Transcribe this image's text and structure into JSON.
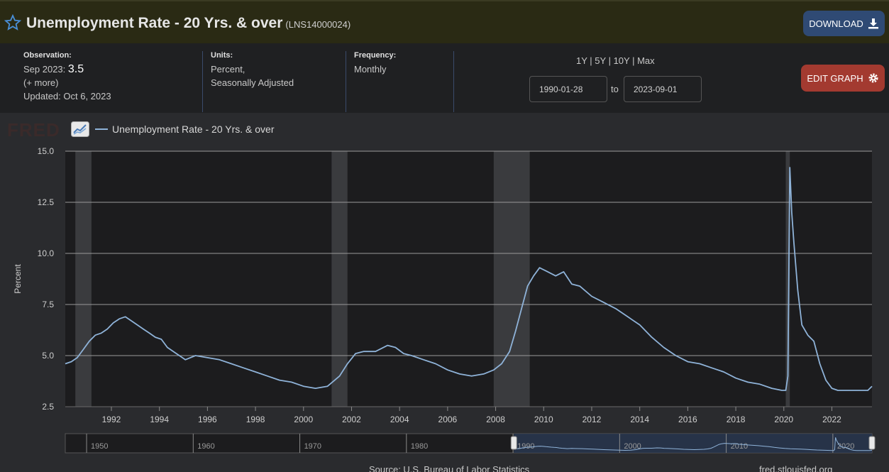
{
  "header": {
    "title": "Unemployment Rate - 20 Yrs. & over",
    "series_id": "(LNS14000024)",
    "download_label": "DOWNLOAD"
  },
  "meta": {
    "observation_label": "Observation:",
    "observation_date": "Sep 2023:",
    "observation_value": "3.5",
    "more_label": "(+ more)",
    "updated": "Updated: Oct 6, 2023",
    "units_label": "Units:",
    "units_line1": "Percent,",
    "units_line2": "Seasonally Adjusted",
    "frequency_label": "Frequency:",
    "frequency_value": "Monthly"
  },
  "controls": {
    "range_links": [
      "1Y",
      "5Y",
      "10Y",
      "Max"
    ],
    "start_date": "1990-01-28",
    "to_label": "to",
    "end_date": "2023-09-01",
    "edit_label": "EDIT GRAPH"
  },
  "footer": {
    "source": "Source: U.S. Bureau of Labor Statistics",
    "site": "fred.stlouisfed.org"
  },
  "colors": {
    "series": "#8fb3d9",
    "recession": "#3a3b3e",
    "plot_bg": "#1c1c1e"
  },
  "chart_data": {
    "type": "line",
    "ylabel": "Percent",
    "xlabel": "",
    "ylim": [
      2.5,
      15.0
    ],
    "xlim": [
      1990.08,
      2023.67
    ],
    "yticks": [
      2.5,
      5.0,
      7.5,
      10.0,
      12.5,
      15.0
    ],
    "xticks": [
      1992,
      1994,
      1996,
      1998,
      2000,
      2002,
      2004,
      2006,
      2008,
      2010,
      2012,
      2014,
      2016,
      2018,
      2020,
      2022
    ],
    "grid": true,
    "legend": "top-left",
    "recessions": [
      [
        1990.5,
        1991.17
      ],
      [
        2001.17,
        2001.83
      ],
      [
        2007.92,
        2009.42
      ],
      [
        2020.08,
        2020.25
      ]
    ],
    "series": [
      {
        "name": "Unemployment Rate - 20 Yrs. & over",
        "x": [
          1990.08,
          1990.33,
          1990.58,
          1990.83,
          1991.08,
          1991.33,
          1991.58,
          1991.83,
          1992.08,
          1992.33,
          1992.58,
          1992.83,
          1993.08,
          1993.33,
          1993.58,
          1993.83,
          1994.08,
          1994.33,
          1994.58,
          1994.83,
          1995.08,
          1995.5,
          1996.0,
          1996.5,
          1997.0,
          1997.5,
          1998.0,
          1998.5,
          1999.0,
          1999.5,
          2000.0,
          2000.5,
          2001.0,
          2001.5,
          2001.83,
          2002.17,
          2002.5,
          2003.0,
          2003.5,
          2003.83,
          2004.17,
          2004.5,
          2005.0,
          2005.5,
          2006.0,
          2006.5,
          2007.0,
          2007.5,
          2007.92,
          2008.25,
          2008.58,
          2008.83,
          2009.08,
          2009.33,
          2009.58,
          2009.83,
          2010.17,
          2010.5,
          2010.83,
          2011.17,
          2011.5,
          2012.0,
          2012.5,
          2013.0,
          2013.5,
          2014.0,
          2014.5,
          2015.0,
          2015.5,
          2016.0,
          2016.5,
          2017.0,
          2017.5,
          2018.0,
          2018.5,
          2019.0,
          2019.5,
          2019.92,
          2020.08,
          2020.17,
          2020.25,
          2020.33,
          2020.42,
          2020.58,
          2020.75,
          2021.0,
          2021.25,
          2021.5,
          2021.75,
          2022.0,
          2022.25,
          2022.5,
          2022.75,
          2023.0,
          2023.25,
          2023.5,
          2023.67
        ],
        "values": [
          4.6,
          4.7,
          4.9,
          5.3,
          5.7,
          6.0,
          6.1,
          6.3,
          6.6,
          6.8,
          6.9,
          6.7,
          6.5,
          6.3,
          6.1,
          5.9,
          5.8,
          5.4,
          5.2,
          5.0,
          4.8,
          5.0,
          4.9,
          4.8,
          4.6,
          4.4,
          4.2,
          4.0,
          3.8,
          3.7,
          3.5,
          3.4,
          3.5,
          4.0,
          4.6,
          5.1,
          5.2,
          5.2,
          5.5,
          5.4,
          5.1,
          5.0,
          4.8,
          4.6,
          4.3,
          4.1,
          4.0,
          4.1,
          4.3,
          4.6,
          5.2,
          6.2,
          7.3,
          8.4,
          8.9,
          9.3,
          9.1,
          8.9,
          9.1,
          8.5,
          8.4,
          7.9,
          7.6,
          7.3,
          6.9,
          6.5,
          5.9,
          5.4,
          5.0,
          4.7,
          4.6,
          4.4,
          4.2,
          3.9,
          3.7,
          3.6,
          3.4,
          3.3,
          3.3,
          4.0,
          14.2,
          12.0,
          10.5,
          8.2,
          6.5,
          6.0,
          5.7,
          4.6,
          3.8,
          3.4,
          3.3,
          3.3,
          3.3,
          3.3,
          3.3,
          3.3,
          3.5
        ]
      }
    ],
    "navigator": {
      "xticks": [
        1950,
        1960,
        1970,
        1980,
        1990,
        2000,
        2010,
        2020
      ],
      "xlim": [
        1948,
        2023.67
      ],
      "window": [
        1990.08,
        2023.67
      ]
    }
  }
}
